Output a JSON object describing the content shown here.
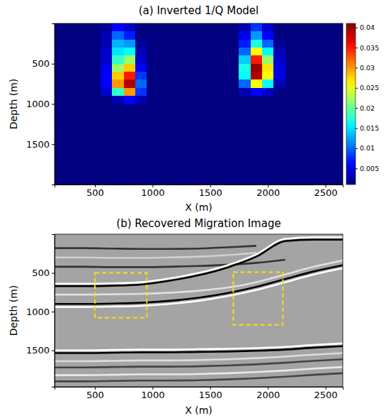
{
  "chart_data": [
    {
      "type": "heatmap",
      "title": "(a) Inverted 1/Q Model",
      "x_label": "X (m)",
      "y_label": "Depth (m)",
      "xlim": [
        150,
        2650
      ],
      "ylim": [
        0,
        2000
      ],
      "xticks": [
        500,
        1000,
        1500,
        2000,
        2500
      ],
      "yticks": [
        500,
        1000,
        1500
      ],
      "color": "jet",
      "x_edges": [
        150,
        250,
        350,
        450,
        550,
        650,
        750,
        850,
        950,
        1050,
        1150,
        1250,
        1350,
        1450,
        1550,
        1650,
        1750,
        1850,
        1950,
        2050,
        2150,
        2250,
        2350,
        2450,
        2550,
        2650
      ],
      "y_edges": [
        0,
        100,
        200,
        300,
        400,
        500,
        600,
        700,
        800,
        900,
        1000,
        1100,
        1200,
        1300,
        1400,
        1500,
        1600,
        1700,
        1800,
        1900,
        2000
      ],
      "cells": [
        [
          0.001,
          0.001,
          0.001,
          0.001,
          0.002,
          0.006,
          0.004,
          0.001,
          0.001,
          0.001,
          0.001,
          0.001,
          0.001,
          0.001,
          0.001,
          0.001,
          0.003,
          0.008,
          0.004,
          0.001,
          0.001,
          0.001,
          0.001,
          0.001,
          0.001
        ],
        [
          0.001,
          0.001,
          0.001,
          0.001,
          0.003,
          0.01,
          0.007,
          0.001,
          0.001,
          0.001,
          0.001,
          0.001,
          0.001,
          0.001,
          0.001,
          0.001,
          0.005,
          0.012,
          0.006,
          0.001,
          0.001,
          0.001,
          0.001,
          0.001,
          0.001
        ],
        [
          0.001,
          0.001,
          0.001,
          0.001,
          0.003,
          0.013,
          0.012,
          0.002,
          0.001,
          0.001,
          0.001,
          0.001,
          0.001,
          0.001,
          0.001,
          0.001,
          0.007,
          0.017,
          0.01,
          0.002,
          0.001,
          0.001,
          0.001,
          0.001,
          0.001
        ],
        [
          0.001,
          0.001,
          0.001,
          0.001,
          0.004,
          0.015,
          0.016,
          0.003,
          0.001,
          0.001,
          0.001,
          0.001,
          0.001,
          0.001,
          0.001,
          0.001,
          0.01,
          0.026,
          0.016,
          0.003,
          0.001,
          0.001,
          0.001,
          0.001,
          0.001
        ],
        [
          0.001,
          0.001,
          0.001,
          0.001,
          0.004,
          0.018,
          0.022,
          0.004,
          0.001,
          0.001,
          0.001,
          0.001,
          0.001,
          0.001,
          0.001,
          0.001,
          0.014,
          0.035,
          0.022,
          0.004,
          0.001,
          0.001,
          0.001,
          0.001,
          0.001
        ],
        [
          0.001,
          0.001,
          0.001,
          0.001,
          0.005,
          0.022,
          0.028,
          0.006,
          0.001,
          0.001,
          0.001,
          0.001,
          0.001,
          0.001,
          0.001,
          0.001,
          0.017,
          0.04,
          0.027,
          0.005,
          0.001,
          0.001,
          0.001,
          0.001,
          0.001
        ],
        [
          0.001,
          0.001,
          0.001,
          0.001,
          0.006,
          0.028,
          0.035,
          0.008,
          0.001,
          0.001,
          0.001,
          0.001,
          0.001,
          0.001,
          0.001,
          0.001,
          0.016,
          0.039,
          0.026,
          0.005,
          0.001,
          0.001,
          0.001,
          0.001,
          0.001
        ],
        [
          0.001,
          0.001,
          0.001,
          0.001,
          0.006,
          0.03,
          0.039,
          0.01,
          0.001,
          0.001,
          0.001,
          0.001,
          0.001,
          0.001,
          0.001,
          0.001,
          0.01,
          0.026,
          0.016,
          0.003,
          0.001,
          0.001,
          0.001,
          0.001,
          0.001
        ],
        [
          0.001,
          0.001,
          0.001,
          0.001,
          0.004,
          0.018,
          0.03,
          0.008,
          0.001,
          0.001,
          0.001,
          0.001,
          0.001,
          0.001,
          0.001,
          0.001,
          0.003,
          0.006,
          0.004,
          0.001,
          0.001,
          0.001,
          0.001,
          0.001,
          0.001
        ],
        [
          0.001,
          0.001,
          0.001,
          0.001,
          0.001,
          0.003,
          0.006,
          0.003,
          0.001,
          0.001,
          0.001,
          0.001,
          0.001,
          0.001,
          0.001,
          0.001,
          0.001,
          0.001,
          0.001,
          0.001,
          0.001,
          0.001,
          0.001,
          0.001,
          0.001
        ],
        [
          0.001,
          0.001,
          0.001,
          0.001,
          0.001,
          0.001,
          0.001,
          0.001,
          0.001,
          0.001,
          0.001,
          0.001,
          0.001,
          0.001,
          0.001,
          0.001,
          0.001,
          0.001,
          0.001,
          0.001,
          0.001,
          0.001,
          0.001,
          0.001,
          0.001
        ],
        [
          0.001,
          0.001,
          0.001,
          0.001,
          0.001,
          0.001,
          0.001,
          0.001,
          0.001,
          0.001,
          0.001,
          0.001,
          0.001,
          0.001,
          0.001,
          0.001,
          0.001,
          0.001,
          0.001,
          0.001,
          0.001,
          0.001,
          0.001,
          0.001,
          0.001
        ],
        [
          0.001,
          0.001,
          0.001,
          0.001,
          0.001,
          0.001,
          0.001,
          0.001,
          0.001,
          0.001,
          0.001,
          0.001,
          0.001,
          0.001,
          0.001,
          0.001,
          0.001,
          0.001,
          0.001,
          0.001,
          0.001,
          0.001,
          0.001,
          0.001,
          0.001
        ],
        [
          0.001,
          0.001,
          0.001,
          0.001,
          0.001,
          0.001,
          0.001,
          0.001,
          0.001,
          0.001,
          0.001,
          0.001,
          0.001,
          0.001,
          0.001,
          0.001,
          0.001,
          0.001,
          0.001,
          0.001,
          0.001,
          0.001,
          0.001,
          0.001,
          0.001
        ],
        [
          0.001,
          0.001,
          0.001,
          0.001,
          0.001,
          0.001,
          0.001,
          0.001,
          0.001,
          0.001,
          0.001,
          0.001,
          0.001,
          0.001,
          0.001,
          0.001,
          0.001,
          0.001,
          0.001,
          0.001,
          0.001,
          0.001,
          0.001,
          0.001,
          0.001
        ],
        [
          0.001,
          0.001,
          0.001,
          0.001,
          0.001,
          0.001,
          0.001,
          0.001,
          0.001,
          0.001,
          0.001,
          0.001,
          0.001,
          0.001,
          0.001,
          0.001,
          0.001,
          0.001,
          0.001,
          0.001,
          0.001,
          0.001,
          0.001,
          0.001,
          0.001
        ],
        [
          0.001,
          0.001,
          0.001,
          0.001,
          0.001,
          0.001,
          0.001,
          0.001,
          0.001,
          0.001,
          0.001,
          0.001,
          0.001,
          0.001,
          0.001,
          0.001,
          0.001,
          0.001,
          0.001,
          0.001,
          0.001,
          0.001,
          0.001,
          0.001,
          0.001
        ],
        [
          0.001,
          0.001,
          0.001,
          0.001,
          0.001,
          0.001,
          0.001,
          0.001,
          0.001,
          0.001,
          0.001,
          0.001,
          0.001,
          0.001,
          0.001,
          0.001,
          0.001,
          0.001,
          0.001,
          0.001,
          0.001,
          0.001,
          0.001,
          0.001,
          0.001
        ],
        [
          0.001,
          0.001,
          0.001,
          0.001,
          0.001,
          0.001,
          0.001,
          0.001,
          0.001,
          0.001,
          0.001,
          0.001,
          0.001,
          0.001,
          0.001,
          0.001,
          0.001,
          0.001,
          0.001,
          0.001,
          0.001,
          0.001,
          0.001,
          0.001,
          0.001
        ],
        [
          0.001,
          0.001,
          0.001,
          0.001,
          0.001,
          0.001,
          0.001,
          0.001,
          0.001,
          0.001,
          0.001,
          0.001,
          0.001,
          0.001,
          0.001,
          0.001,
          0.001,
          0.001,
          0.001,
          0.001,
          0.001,
          0.001,
          0.001,
          0.001,
          0.001
        ]
      ],
      "colorbar": {
        "range": [
          0.001,
          0.041
        ],
        "ticks": [
          0.005,
          0.01,
          0.015,
          0.02,
          0.025,
          0.03,
          0.035,
          0.04
        ]
      }
    },
    {
      "type": "line",
      "title": "(b) Recovered Migration Image",
      "x_label": "X (m)",
      "y_label": "Depth (m)",
      "xlim": [
        150,
        2650
      ],
      "ylim": [
        0,
        1970
      ],
      "xticks": [
        500,
        1000,
        1500,
        2000,
        2500
      ],
      "yticks": [
        500,
        1000,
        1500
      ],
      "x": [
        150,
        400,
        650,
        900,
        1150,
        1400,
        1650,
        1900,
        2150,
        2400,
        2650
      ],
      "series": [
        {
          "color": "#333333",
          "values": [
            180,
            180,
            185,
            190,
            190,
            185,
            170,
            150,
            null,
            null,
            null
          ]
        },
        {
          "color": "#d0d0d0",
          "values": [
            300,
            300,
            305,
            305,
            300,
            290,
            270,
            240,
            null,
            null,
            null
          ]
        },
        {
          "color": "#333333",
          "values": [
            420,
            420,
            425,
            425,
            420,
            410,
            395,
            370,
            330,
            null,
            null
          ]
        },
        {
          "color": "#ffffff",
          "values": [
            640,
            640,
            635,
            620,
            570,
            500,
            400,
            260,
            60,
            40,
            40
          ]
        },
        {
          "color": "#000000",
          "values": [
            670,
            670,
            665,
            650,
            600,
            530,
            430,
            290,
            90,
            70,
            70
          ]
        },
        {
          "color": "#e0e0e0",
          "values": [
            780,
            780,
            775,
            770,
            755,
            730,
            690,
            620,
            520,
            420,
            340
          ]
        },
        {
          "color": "#000000",
          "values": [
            900,
            900,
            895,
            885,
            860,
            820,
            760,
            680,
            580,
            480,
            400
          ]
        },
        {
          "color": "#ffffff",
          "values": [
            940,
            940,
            935,
            925,
            900,
            860,
            800,
            720,
            620,
            520,
            440
          ]
        },
        {
          "color": "#ffffff",
          "values": [
            1500,
            1500,
            1495,
            1490,
            1490,
            1485,
            1480,
            1470,
            1455,
            1430,
            1410
          ]
        },
        {
          "color": "#000000",
          "values": [
            1535,
            1535,
            1530,
            1525,
            1525,
            1520,
            1515,
            1505,
            1490,
            1465,
            1445
          ]
        },
        {
          "color": "#dddddd",
          "values": [
            1640,
            1640,
            1635,
            1630,
            1630,
            1625,
            1615,
            1600,
            1580,
            1555,
            1535
          ]
        },
        {
          "color": "#444444",
          "values": [
            1720,
            1720,
            1715,
            1710,
            1710,
            1705,
            1695,
            1680,
            1660,
            1635,
            1615
          ]
        },
        {
          "color": "#e8e8e8",
          "values": [
            1820,
            1820,
            1815,
            1810,
            1810,
            1805,
            1795,
            1780,
            1760,
            1735,
            1715
          ]
        },
        {
          "color": "#444444",
          "values": [
            1900,
            1900,
            1895,
            1890,
            1890,
            1885,
            1875,
            1860,
            1840,
            1815,
            1795
          ]
        }
      ],
      "boxes": [
        {
          "x0": 500,
          "x1": 950,
          "y0": 500,
          "y1": 1080,
          "color": "#ffe100",
          "line_style": "dashed"
        },
        {
          "x0": 1700,
          "x1": 2130,
          "y0": 490,
          "y1": 1170,
          "color": "#ffe100",
          "line_style": "dashed"
        }
      ]
    }
  ]
}
